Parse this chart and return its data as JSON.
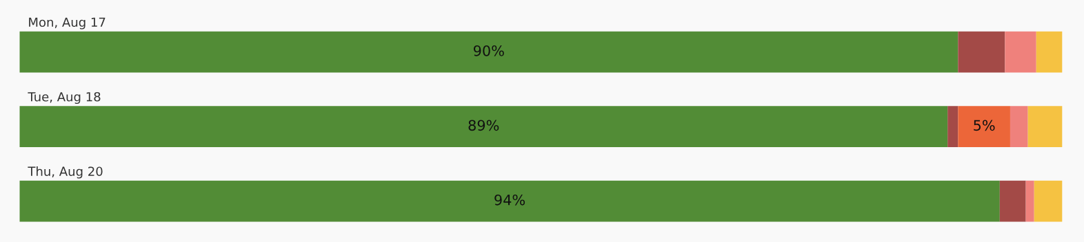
{
  "chart_data": {
    "type": "bar",
    "orientation": "horizontal",
    "stacked": true,
    "categories": [
      "Mon, Aug 17",
      "Tue, Aug 18",
      "Thu, Aug 20"
    ],
    "series": [
      {
        "color": "#528c36",
        "values": [
          90,
          89,
          94
        ],
        "value_labels": [
          "90%",
          "89%",
          "94%"
        ]
      },
      {
        "color": "#a34a47",
        "values": [
          4.5,
          1.0,
          2.5
        ]
      },
      {
        "color": "#ec6639",
        "values": [
          null,
          5,
          null
        ],
        "value_labels": [
          null,
          "5%",
          null
        ]
      },
      {
        "color": "#ef817c",
        "values": [
          3,
          1.7,
          0.8
        ]
      },
      {
        "color": "#f5c242",
        "values": [
          2.5,
          3.3,
          2.7
        ]
      }
    ],
    "xlim": [
      0,
      100
    ],
    "tick_labels": false
  }
}
